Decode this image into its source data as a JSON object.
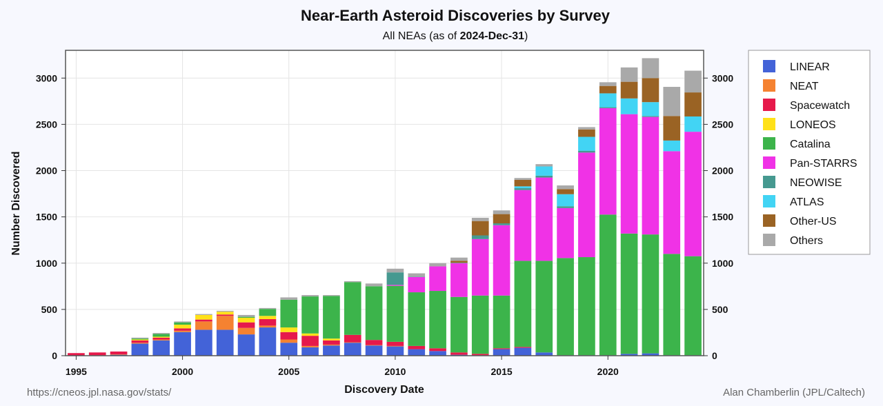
{
  "chart_data": {
    "type": "bar",
    "stacked": true,
    "title": "Near-Earth Asteroid Discoveries by Survey",
    "subtitle_prefix": "All NEAs (as of ",
    "subtitle_date": "2024-Dec-31",
    "subtitle_suffix": ")",
    "xlabel": "Discovery Date",
    "ylabel": "Number Discovered",
    "xlim": [
      1994.5,
      2024.5
    ],
    "ylim": [
      0,
      3300
    ],
    "x_ticks": [
      1995,
      2000,
      2005,
      2010,
      2015,
      2020
    ],
    "y_ticks": [
      0,
      500,
      1000,
      1500,
      2000,
      2500,
      3000
    ],
    "grid": true,
    "legend_position": "right",
    "x": [
      1995,
      1996,
      1997,
      1998,
      1999,
      2000,
      2001,
      2002,
      2003,
      2004,
      2005,
      2006,
      2007,
      2008,
      2009,
      2010,
      2011,
      2012,
      2013,
      2014,
      2015,
      2016,
      2017,
      2018,
      2019,
      2020,
      2021,
      2022,
      2023,
      2024
    ],
    "series": [
      {
        "name": "LINEAR",
        "color": "#4363d8",
        "values": [
          0,
          0,
          10,
          130,
          165,
          255,
          280,
          280,
          230,
          305,
          140,
          90,
          110,
          140,
          110,
          100,
          70,
          50,
          10,
          5,
          70,
          85,
          35,
          5,
          5,
          5,
          20,
          25,
          5,
          5
        ]
      },
      {
        "name": "NEAT",
        "color": "#f58231",
        "values": [
          0,
          5,
          5,
          10,
          10,
          15,
          90,
          150,
          70,
          20,
          35,
          15,
          10,
          5,
          5,
          5,
          0,
          0,
          0,
          0,
          0,
          0,
          0,
          0,
          0,
          0,
          0,
          0,
          0,
          0
        ]
      },
      {
        "name": "Spacewatch",
        "color": "#e6194b",
        "values": [
          28,
          30,
          30,
          25,
          20,
          25,
          20,
          15,
          60,
          70,
          80,
          110,
          45,
          80,
          55,
          45,
          35,
          30,
          25,
          15,
          10,
          10,
          0,
          0,
          0,
          0,
          0,
          0,
          0,
          0
        ]
      },
      {
        "name": "LONEOS",
        "color": "#ffe119",
        "values": [
          0,
          0,
          0,
          10,
          10,
          40,
          50,
          30,
          50,
          35,
          50,
          25,
          20,
          0,
          0,
          0,
          0,
          0,
          0,
          0,
          0,
          0,
          0,
          0,
          0,
          0,
          0,
          0,
          0,
          0
        ]
      },
      {
        "name": "Catalina",
        "color": "#3cb44b",
        "values": [
          0,
          0,
          0,
          10,
          30,
          25,
          0,
          0,
          10,
          75,
          300,
          400,
          460,
          570,
          580,
          605,
          580,
          620,
          600,
          630,
          570,
          930,
          990,
          1050,
          1060,
          1520,
          1300,
          1285,
          1095,
          1070
        ]
      },
      {
        "name": "Pan-STARRS",
        "color": "#f032e6",
        "values": [
          0,
          0,
          0,
          0,
          0,
          0,
          0,
          0,
          0,
          0,
          0,
          0,
          0,
          0,
          0,
          10,
          165,
          265,
          365,
          610,
          760,
          765,
          900,
          540,
          1130,
          1150,
          1290,
          1270,
          1110,
          1345
        ]
      },
      {
        "name": "NEOWISE",
        "color": "#469990",
        "values": [
          0,
          0,
          0,
          0,
          0,
          0,
          0,
          0,
          0,
          0,
          0,
          0,
          0,
          0,
          0,
          135,
          5,
          0,
          5,
          40,
          20,
          20,
          20,
          20,
          20,
          10,
          0,
          10,
          0,
          0
        ]
      },
      {
        "name": "ATLAS",
        "color": "#42d4f4",
        "values": [
          0,
          0,
          0,
          0,
          0,
          0,
          0,
          0,
          0,
          0,
          0,
          0,
          0,
          0,
          0,
          0,
          0,
          0,
          0,
          0,
          0,
          20,
          100,
          130,
          150,
          150,
          170,
          150,
          115,
          165
        ]
      },
      {
        "name": "Other-US",
        "color": "#9a6324",
        "values": [
          0,
          0,
          0,
          0,
          0,
          0,
          0,
          0,
          0,
          0,
          0,
          0,
          0,
          0,
          0,
          0,
          0,
          0,
          20,
          155,
          100,
          70,
          0,
          55,
          80,
          80,
          180,
          260,
          265,
          260
        ]
      },
      {
        "name": "Others",
        "color": "#a9a9a9",
        "values": [
          0,
          0,
          0,
          10,
          10,
          10,
          10,
          10,
          20,
          10,
          25,
          15,
          10,
          10,
          30,
          40,
          35,
          35,
          35,
          35,
          40,
          20,
          25,
          40,
          25,
          40,
          155,
          215,
          315,
          235
        ]
      }
    ]
  },
  "footer": {
    "source_url": "https://cneos.jpl.nasa.gov/stats/",
    "credit": "Alan Chamberlin (JPL/Caltech)"
  }
}
